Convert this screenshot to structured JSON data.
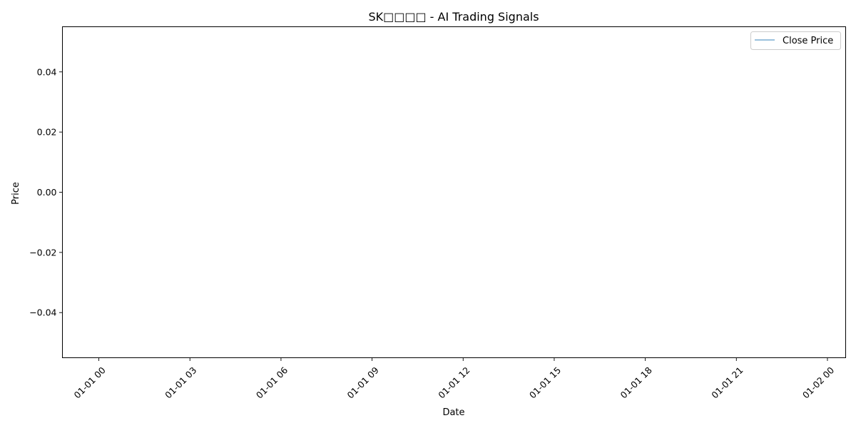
{
  "chart_data": {
    "type": "line",
    "title": "SK□□□□ - AI Trading Signals",
    "xlabel": "Date",
    "ylabel": "Price",
    "x_ticks": [
      "01-01 00",
      "01-01 03",
      "01-01 06",
      "01-01 09",
      "01-01 12",
      "01-01 15",
      "01-01 18",
      "01-01 21",
      "01-02 00"
    ],
    "y_ticks": [
      0.04,
      0.02,
      0.0,
      -0.02,
      -0.04
    ],
    "y_tick_labels": [
      "0.04",
      "0.02",
      "0.00",
      "−0.02",
      "−0.04"
    ],
    "ylim": [
      -0.055,
      0.055
    ],
    "xlim_hours": [
      -1.2,
      24.6
    ],
    "series": [
      {
        "name": "Close Price",
        "color": "#1f77b4",
        "x": [],
        "y": []
      }
    ],
    "legend_position": "top-right",
    "grid": false
  }
}
